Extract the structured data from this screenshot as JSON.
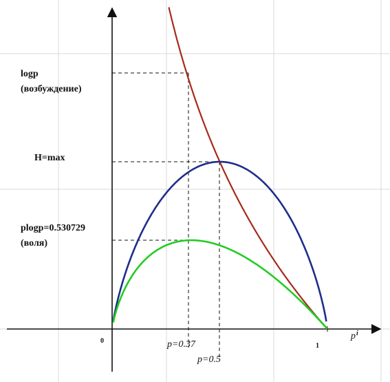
{
  "chart_data": {
    "type": "line",
    "xlabel": "p",
    "xlabel_sub": "i",
    "origin_label": "0",
    "one_label": "1",
    "grid": true,
    "annotations": {
      "logp_line1": "logp",
      "logp_line2": "(возбуждение)",
      "hmax": "H=max",
      "plogp_line1": "plogp=0.530729",
      "plogp_line2": "(воля)",
      "p037": "p=0.37",
      "p05": "p=0.5"
    },
    "series": [
      {
        "formula": "-log(p)",
        "color": "#a52a1a"
      },
      {
        "formula": "-p*log(p)-(1-p)*log(1-p)",
        "color": "#1e2d8c"
      },
      {
        "formula": "-p*log(p)",
        "color": "#22cc22"
      }
    ],
    "markers": [
      {
        "x": 0.37,
        "y": 0.5307
      },
      {
        "x": 0.5,
        "y": 1.0
      }
    ]
  }
}
